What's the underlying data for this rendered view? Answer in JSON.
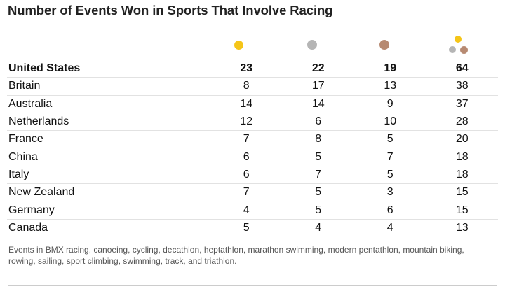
{
  "title": "Number of Events Won in Sports That Involve Racing",
  "note": "Events in BMX racing, canoeing, cycling, decathlon, heptathlon, marathon swimming, modern pentathlon, mountain biking, rowing, sailing, sport climbing, swimming, track, and triathlon.",
  "colors": {
    "gold": "#f5c518",
    "silver": "#b5b5b5",
    "bronze": "#b78a72"
  },
  "chart_data": {
    "type": "table",
    "columns": [
      "gold",
      "silver",
      "bronze",
      "total"
    ],
    "rows": [
      {
        "country": "United States",
        "gold": 23,
        "silver": 22,
        "bronze": 19,
        "total": 64,
        "highlight": true
      },
      {
        "country": "Britain",
        "gold": 8,
        "silver": 17,
        "bronze": 13,
        "total": 38
      },
      {
        "country": "Australia",
        "gold": 14,
        "silver": 14,
        "bronze": 9,
        "total": 37
      },
      {
        "country": "Netherlands",
        "gold": 12,
        "silver": 6,
        "bronze": 10,
        "total": 28
      },
      {
        "country": "France",
        "gold": 7,
        "silver": 8,
        "bronze": 5,
        "total": 20
      },
      {
        "country": "China",
        "gold": 6,
        "silver": 5,
        "bronze": 7,
        "total": 18
      },
      {
        "country": "Italy",
        "gold": 6,
        "silver": 7,
        "bronze": 5,
        "total": 18
      },
      {
        "country": "New Zealand",
        "gold": 7,
        "silver": 5,
        "bronze": 3,
        "total": 15
      },
      {
        "country": "Germany",
        "gold": 4,
        "silver": 5,
        "bronze": 6,
        "total": 15
      },
      {
        "country": "Canada",
        "gold": 5,
        "silver": 4,
        "bronze": 4,
        "total": 13
      }
    ]
  }
}
